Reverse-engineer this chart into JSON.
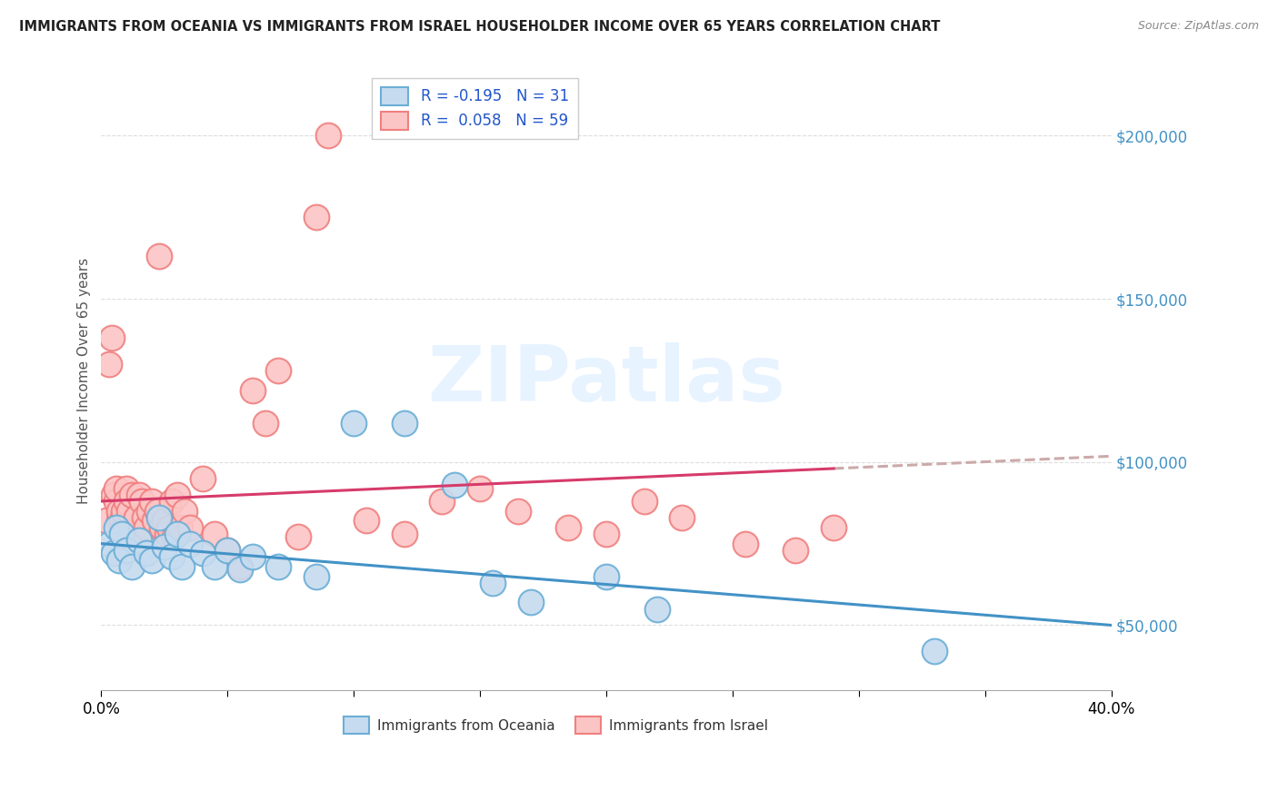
{
  "title": "IMMIGRANTS FROM OCEANIA VS IMMIGRANTS FROM ISRAEL HOUSEHOLDER INCOME OVER 65 YEARS CORRELATION CHART",
  "source": "Source: ZipAtlas.com",
  "ylabel": "Householder Income Over 65 years",
  "watermark": "ZIPatlas",
  "legend_oceania": "R = -0.195   N = 31",
  "legend_israel": "R =  0.058   N = 59",
  "legend_label_oceania": "Immigrants from Oceania",
  "legend_label_israel": "Immigrants from Israel",
  "xlim": [
    0.0,
    40.0
  ],
  "ylim": [
    30000,
    220000
  ],
  "yticks": [
    50000,
    100000,
    150000,
    200000
  ],
  "ytick_labels": [
    "$50,000",
    "$100,000",
    "$150,000",
    "$200,000"
  ],
  "color_oceania_edge": "#6baed6",
  "color_oceania_fill": "#c6dbef",
  "color_israel_edge": "#f08080",
  "color_israel_fill": "#fcc5c5",
  "color_trendline_oceania": "#4292c6",
  "color_trendline_israel": "#d63b6a",
  "color_trendline_dashed": "#ccaaaa",
  "oceania_x": [
    0.3,
    0.5,
    0.6,
    0.7,
    0.8,
    1.0,
    1.2,
    1.5,
    1.8,
    2.0,
    2.3,
    2.5,
    2.8,
    3.0,
    3.2,
    3.5,
    4.0,
    4.5,
    5.0,
    5.5,
    6.0,
    7.0,
    8.5,
    10.0,
    12.0,
    14.0,
    15.5,
    17.0,
    20.0,
    22.0,
    33.0
  ],
  "oceania_y": [
    75000,
    72000,
    80000,
    70000,
    78000,
    73000,
    68000,
    76000,
    72000,
    70000,
    83000,
    74000,
    71000,
    78000,
    68000,
    75000,
    72000,
    68000,
    73000,
    67000,
    71000,
    68000,
    65000,
    112000,
    112000,
    93000,
    63000,
    57000,
    65000,
    55000,
    42000
  ],
  "israel_x": [
    0.2,
    0.3,
    0.4,
    0.5,
    0.6,
    0.6,
    0.7,
    0.7,
    0.8,
    0.8,
    0.9,
    0.9,
    1.0,
    1.0,
    1.1,
    1.2,
    1.3,
    1.4,
    1.5,
    1.6,
    1.7,
    1.8,
    1.9,
    2.0,
    2.1,
    2.2,
    2.3,
    2.4,
    2.5,
    2.6,
    2.7,
    2.8,
    2.9,
    3.0,
    3.1,
    3.3,
    3.5,
    4.0,
    4.5,
    5.0,
    5.5,
    6.0,
    6.5,
    7.0,
    7.8,
    8.5,
    9.0,
    10.5,
    12.0,
    13.5,
    15.0,
    16.5,
    18.5,
    20.0,
    21.5,
    23.0,
    25.5,
    27.5,
    29.0
  ],
  "israel_y": [
    82000,
    130000,
    138000,
    90000,
    88000,
    92000,
    82000,
    85000,
    78000,
    82000,
    80000,
    85000,
    92000,
    88000,
    85000,
    90000,
    78000,
    83000,
    90000,
    88000,
    83000,
    80000,
    85000,
    88000,
    82000,
    85000,
    163000,
    80000,
    82000,
    78000,
    80000,
    88000,
    77000,
    90000,
    80000,
    85000,
    80000,
    95000,
    78000,
    73000,
    68000,
    122000,
    112000,
    128000,
    77000,
    175000,
    200000,
    82000,
    78000,
    88000,
    92000,
    85000,
    80000,
    78000,
    88000,
    83000,
    75000,
    73000,
    80000
  ]
}
